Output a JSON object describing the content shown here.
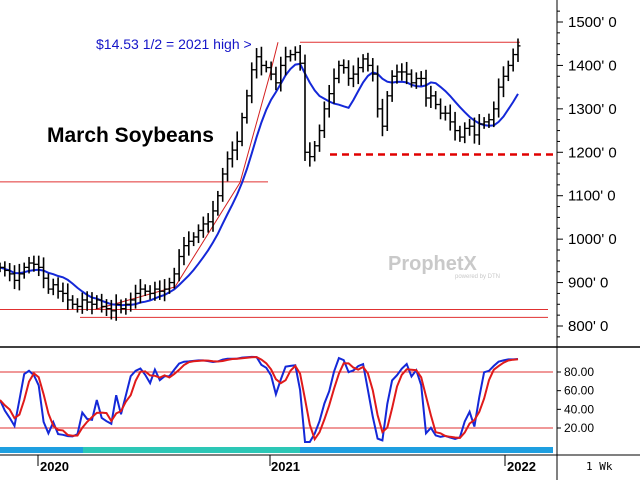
{
  "chart_data": [
    {
      "type": "candlestick",
      "title": "March Soybeans",
      "annotation": "$14.53 1/2 = 2021 high >",
      "y_tick_labels": [
        "1500' 0",
        "1400' 0",
        "1300' 0",
        "1200' 0",
        "1100' 0",
        "1000' 0",
        "900' 0",
        "800' 0"
      ],
      "y_ticks": [
        1500,
        1400,
        1300,
        1200,
        1100,
        1000,
        900,
        800
      ],
      "ylim": [
        770,
        1530
      ],
      "x_tick_labels": [
        "2020",
        "2021",
        "2022"
      ],
      "period": "1 Wk",
      "watermark": {
        "brand": "ProphetX",
        "sub": "powered by DTN"
      },
      "horizontal_lines": [
        {
          "value": 1453.5,
          "style": "solid",
          "color": "#e03030"
        },
        {
          "value": 1195,
          "style": "dashed",
          "color": "#e00000"
        },
        {
          "value": 1132,
          "style": "solid",
          "color": "#e03030"
        },
        {
          "value": 838,
          "style": "solid",
          "color": "#e03030"
        },
        {
          "value": 820,
          "style": "solid",
          "color": "#e03030"
        }
      ],
      "price_series": [
        935,
        928,
        920,
        905,
        920,
        935,
        945,
        942,
        935,
        910,
        885,
        895,
        880,
        875,
        860,
        850,
        845,
        860,
        855,
        850,
        860,
        845,
        840,
        835,
        850,
        840,
        850,
        860,
        875,
        885,
        880,
        875,
        885,
        880,
        885,
        900,
        920,
        960,
        985,
        995,
        1005,
        1020,
        1035,
        1040,
        1065,
        1100,
        1150,
        1185,
        1205,
        1225,
        1280,
        1330,
        1390,
        1420,
        1400,
        1395,
        1380,
        1360,
        1400,
        1420,
        1425,
        1430,
        1405,
        1200,
        1190,
        1215,
        1250,
        1300,
        1335,
        1370,
        1400,
        1395,
        1370,
        1380,
        1395,
        1415,
        1400,
        1380,
        1300,
        1260,
        1330,
        1375,
        1385,
        1385,
        1380,
        1360,
        1370,
        1370,
        1325,
        1330,
        1310,
        1290,
        1290,
        1270,
        1250,
        1235,
        1255,
        1260,
        1240,
        1265,
        1270,
        1275,
        1300,
        1350,
        1375,
        1400,
        1425,
        1445
      ],
      "moving_average_color": "#1428d8",
      "price_color": "#000000",
      "trend_color": "#d42020"
    },
    {
      "type": "line",
      "name": "stochastic",
      "y_tick_labels": [
        "80.00",
        "60.00",
        "40.00",
        "20.00"
      ],
      "y_ticks": [
        80,
        60,
        40,
        20
      ],
      "ylim": [
        0,
        100
      ],
      "reference_lines": [
        80,
        20
      ],
      "series_colors": [
        "#1428d8",
        "#e01a1a"
      ],
      "band_colors": [
        "#1e9fe0",
        "#2cc7b6"
      ]
    }
  ]
}
